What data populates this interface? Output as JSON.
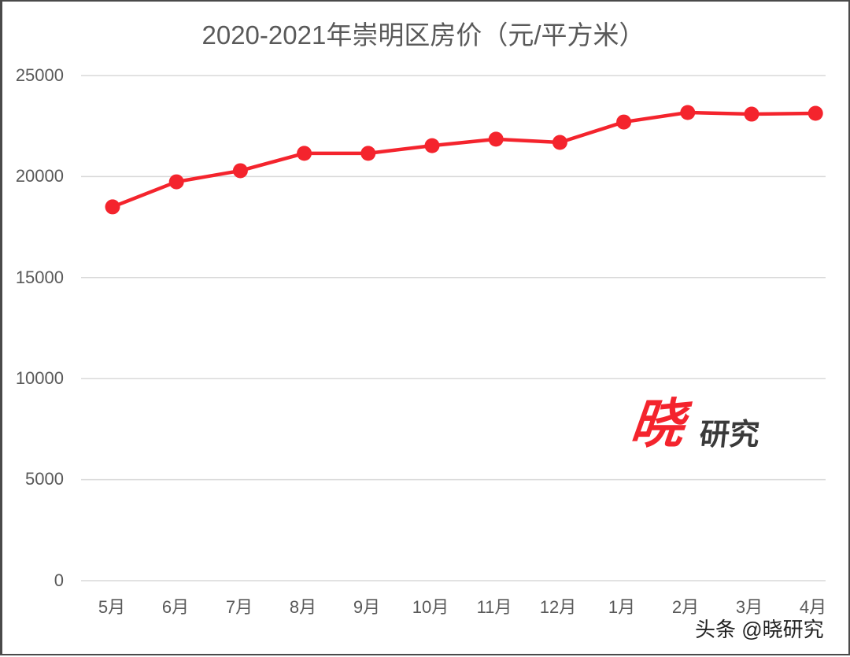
{
  "chart_data": {
    "type": "line",
    "title": "2020-2021年崇明区房价（元/平方米）",
    "xlabel": "",
    "ylabel": "",
    "categories": [
      "5月",
      "6月",
      "7月",
      "8月",
      "9月",
      "10月",
      "11月",
      "12月",
      "1月",
      "2月",
      "3月",
      "4月"
    ],
    "series": [
      {
        "name": "崇明区房价",
        "color": "#f4242d",
        "values": [
          18500,
          19740,
          20290,
          21150,
          21150,
          21530,
          21850,
          21690,
          22700,
          23170,
          23090,
          23130
        ]
      }
    ],
    "ylim": [
      0,
      25000
    ],
    "yticks": [
      "0",
      "5000",
      "10000",
      "15000",
      "20000",
      "25000"
    ],
    "grid": true,
    "legend": "none"
  },
  "logo": {
    "big": "晓",
    "small": "研究",
    "big_color": "#f4242d",
    "small_color": "#3a3a3a"
  },
  "watermark": "头条 @晓研究",
  "colors": {
    "line": "#f4242d",
    "grid": "#d9d9d9",
    "text": "#595959",
    "frame": "#4a4a4a"
  }
}
